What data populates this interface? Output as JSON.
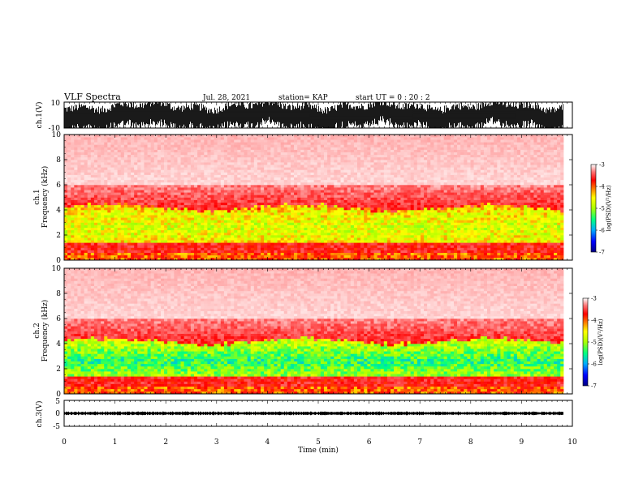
{
  "header": {
    "title": "VLF Spectra",
    "date": "Jul. 28, 2021",
    "station": "station= KAP",
    "start": "start  UT  =   0  : 20 : 2"
  },
  "chart_data": [
    {
      "type": "line",
      "ylabel": "ch.1(V)",
      "ylim": [
        -10,
        10
      ],
      "yticks": [
        "10",
        "-10"
      ],
      "xlim": [
        0,
        10
      ],
      "x_end_min": 9.83,
      "description_values": {
        "typical_amplitude_v": [
          -10,
          10
        ]
      }
    },
    {
      "type": "heatmap",
      "ylabel": "ch.1",
      "ylabel2": "Frequency  (kHz)",
      "ylim": [
        0,
        10
      ],
      "yticks": [
        "0",
        "2",
        "4",
        "6",
        "8",
        "10"
      ],
      "xlim": [
        0,
        10
      ],
      "x_end_min": 9.83,
      "colorbar": {
        "label": "log(PSD)(V²/Hz)",
        "min": -7,
        "max": -3,
        "ticks": [
          "-3",
          "-4",
          "-5",
          "-6",
          "-7"
        ]
      }
    },
    {
      "type": "heatmap",
      "ylabel": "ch.2",
      "ylabel2": "Frequency  (kHz)",
      "ylim": [
        0,
        10
      ],
      "yticks": [
        "0",
        "2",
        "4",
        "6",
        "8",
        "10"
      ],
      "xlim": [
        0,
        10
      ],
      "x_end_min": 9.83,
      "colorbar": {
        "label": "log(PSD)(V²/Hz)",
        "min": -7,
        "max": -3,
        "ticks": [
          "-3",
          "-4",
          "-5",
          "-6",
          "-7"
        ]
      }
    },
    {
      "type": "line",
      "ylabel": "ch.3(V)",
      "ylim": [
        -5,
        5
      ],
      "yticks": [
        "5",
        "0",
        "-5"
      ],
      "xlim": [
        0,
        10
      ],
      "x_end_min": 9.83,
      "baseline_v": 0,
      "xlabel": "Time  (min)",
      "xticks": [
        "0",
        "1",
        "2",
        "3",
        "4",
        "5",
        "6",
        "7",
        "8",
        "9",
        "10"
      ]
    }
  ],
  "colors": {
    "colormap": [
      "#000070",
      "#0000ff",
      "#00c8ff",
      "#00ff80",
      "#60ff00",
      "#ffff00",
      "#ff8000",
      "#ff0000",
      "#ff7070",
      "#ffffff"
    ],
    "trace": "#000000"
  }
}
